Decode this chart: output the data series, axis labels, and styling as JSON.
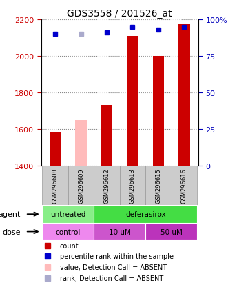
{
  "title": "GDS3558 / 201526_at",
  "samples": [
    "GSM296608",
    "GSM296609",
    "GSM296612",
    "GSM296613",
    "GSM296615",
    "GSM296616"
  ],
  "bar_values": [
    1580,
    1650,
    1730,
    2110,
    2000,
    2175
  ],
  "bar_colors": [
    "#cc0000",
    "#ffbbbb",
    "#cc0000",
    "#cc0000",
    "#cc0000",
    "#cc0000"
  ],
  "bar_absent": [
    false,
    true,
    false,
    false,
    false,
    false
  ],
  "rank_values": [
    90,
    90,
    91,
    95,
    93,
    95
  ],
  "rank_absent": [
    false,
    true,
    false,
    false,
    false,
    false
  ],
  "rank_colors_present": "#0000cc",
  "rank_colors_absent": "#aaaacc",
  "ymin": 1400,
  "ymax": 2200,
  "y2min": 0,
  "y2max": 100,
  "y_ticks": [
    1400,
    1600,
    1800,
    2000,
    2200
  ],
  "y2_ticks": [
    0,
    25,
    50,
    75,
    100
  ],
  "agent_labels": [
    {
      "text": "untreated",
      "cols": [
        0,
        1
      ],
      "color": "#88ee88"
    },
    {
      "text": "deferasirox",
      "cols": [
        2,
        5
      ],
      "color": "#44dd44"
    }
  ],
  "dose_labels": [
    {
      "text": "control",
      "cols": [
        0,
        1
      ],
      "color": "#ee88ee"
    },
    {
      "text": "10 uM",
      "cols": [
        2,
        3
      ],
      "color": "#dd55cc"
    },
    {
      "text": "50 uM",
      "cols": [
        4,
        5
      ],
      "color": "#cc33bb"
    }
  ],
  "legend_items": [
    {
      "label": "count",
      "color": "#cc0000"
    },
    {
      "label": "percentile rank within the sample",
      "color": "#0000cc"
    },
    {
      "label": "value, Detection Call = ABSENT",
      "color": "#ffbbbb"
    },
    {
      "label": "rank, Detection Call = ABSENT",
      "color": "#aaaacc"
    }
  ],
  "agent_row_label": "agent",
  "dose_row_label": "dose",
  "left_col_color": "#cc0000",
  "right_col_color": "#0000bb",
  "grid_color": "#888888",
  "sample_box_color": "#cccccc",
  "sample_box_edge": "#999999",
  "background_color": "#ffffff"
}
